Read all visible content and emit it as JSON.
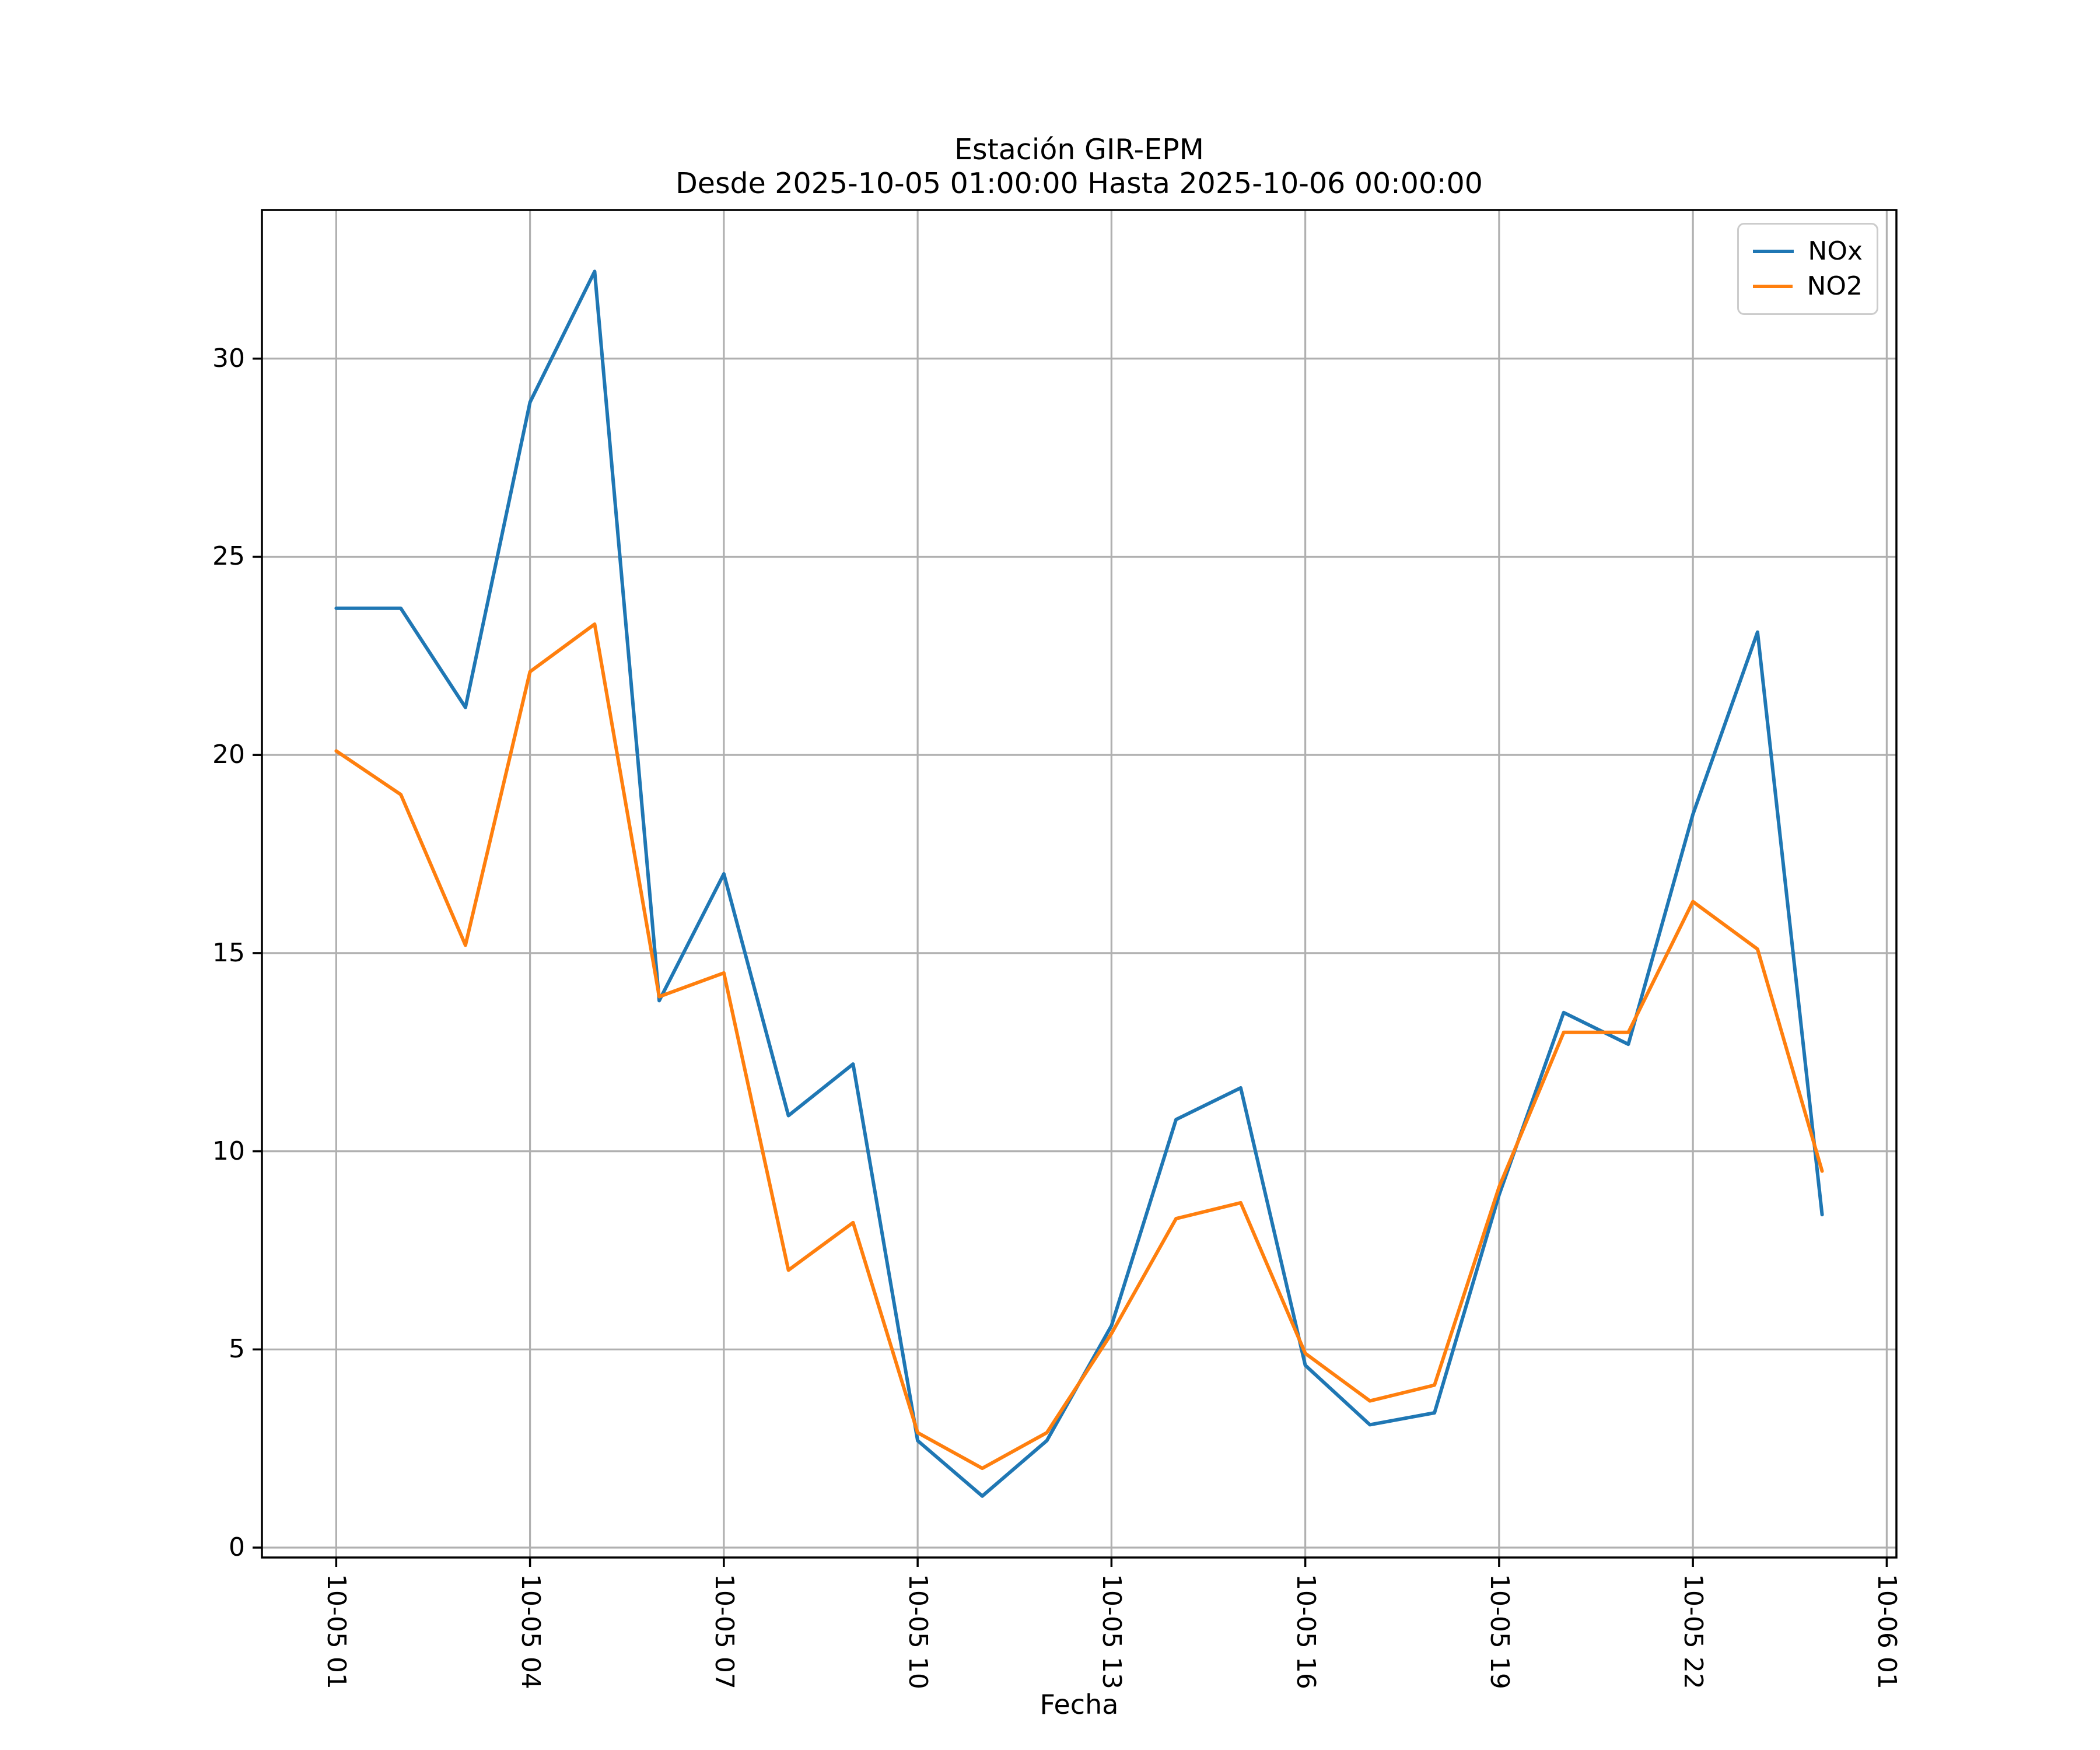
{
  "chart_data": {
    "type": "line",
    "title": "Estación GIR-EPM",
    "subtitle": "Desde 2025-10-05 01:00:00 Hasta 2025-10-06 00:00:00",
    "xlabel": "Fecha",
    "ylabel": "",
    "grid": true,
    "legend_position": "upper right",
    "x_hours": [
      1,
      2,
      3,
      4,
      5,
      6,
      7,
      8,
      9,
      10,
      11,
      12,
      13,
      14,
      15,
      16,
      17,
      18,
      19,
      20,
      21,
      22,
      23,
      24
    ],
    "x_tick_hours": [
      1,
      4,
      7,
      10,
      13,
      16,
      19,
      22,
      25
    ],
    "x_tick_labels": [
      "10-05 01",
      "10-05 04",
      "10-05 07",
      "10-05 10",
      "10-05 13",
      "10-05 16",
      "10-05 19",
      "10-05 22",
      "10-06 01"
    ],
    "y_ticks": [
      0,
      5,
      10,
      15,
      20,
      25,
      30
    ],
    "xlim_hours": [
      -0.15,
      25.15
    ],
    "ylim": [
      -0.25,
      33.75
    ],
    "series": [
      {
        "name": "NOx",
        "color": "#1f77b4",
        "values": [
          23.7,
          23.7,
          21.2,
          28.9,
          32.2,
          13.8,
          17.0,
          10.9,
          12.2,
          2.7,
          1.3,
          2.7,
          5.6,
          10.8,
          11.6,
          4.6,
          3.1,
          3.4,
          8.9,
          13.5,
          12.7,
          18.5,
          23.1,
          8.4
        ]
      },
      {
        "name": "NO2",
        "color": "#ff7f0e",
        "values": [
          20.1,
          19.0,
          15.2,
          22.1,
          23.3,
          13.9,
          14.5,
          7.0,
          8.2,
          2.9,
          2.0,
          2.9,
          5.4,
          8.3,
          8.7,
          4.9,
          3.7,
          4.1,
          9.1,
          13.0,
          13.0,
          16.3,
          15.1,
          9.5
        ]
      }
    ],
    "colors": {
      "grid": "#b0b0b0",
      "spine": "#000000",
      "background": "#ffffff"
    }
  }
}
